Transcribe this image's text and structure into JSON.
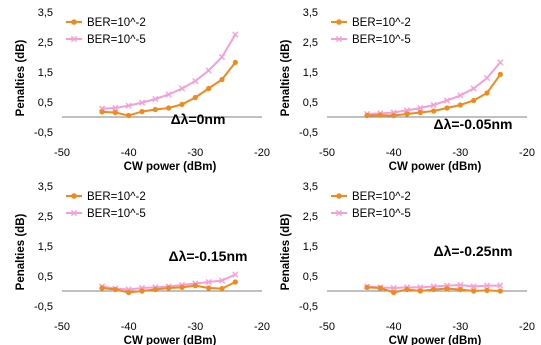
{
  "colors": {
    "series1": "#f08a1c",
    "series2": "#f59fd9",
    "axis": "#808080",
    "grid": "#e6e6e6",
    "text": "#000000"
  },
  "chart_data": [
    {
      "type": "line",
      "annotation": "Δλ=0nm",
      "xlabel": "CW power (dBm)",
      "ylabel": "Penalties (dB)",
      "xlim": [
        -50,
        -20
      ],
      "ylim": [
        -0.5,
        3.5
      ],
      "xticks": [
        "-50",
        "-40",
        "-30",
        "-20"
      ],
      "yticks": [
        "3,5",
        "2,5",
        "1,5",
        "0,5",
        "-0,5"
      ],
      "grid": false,
      "legend": "top-left",
      "series": [
        {
          "name": "BER=10^-2",
          "x": [
            -44,
            -42,
            -40,
            -38,
            -36,
            -34,
            -32,
            -30,
            -28,
            -26,
            -24
          ],
          "y": [
            0.17,
            0.15,
            0.05,
            0.18,
            0.25,
            0.3,
            0.42,
            0.65,
            0.95,
            1.25,
            1.82
          ]
        },
        {
          "name": "BER=10^-5",
          "x": [
            -44,
            -42,
            -40,
            -38,
            -36,
            -34,
            -32,
            -30,
            -28,
            -26,
            -24
          ],
          "y": [
            0.28,
            0.3,
            0.38,
            0.48,
            0.6,
            0.75,
            0.95,
            1.2,
            1.55,
            2.0,
            2.75
          ]
        }
      ]
    },
    {
      "type": "line",
      "annotation": "Δλ=-0.05nm",
      "xlabel": "CW power (dBm)",
      "ylabel": "Penalties (dB)",
      "xlim": [
        -50,
        -20
      ],
      "ylim": [
        -0.5,
        3.5
      ],
      "xticks": [
        "-50",
        "-40",
        "-30",
        "-20"
      ],
      "yticks": [
        "3,5",
        "2,5",
        "1,5",
        "0,5",
        "-0,5"
      ],
      "grid": false,
      "legend": "top-left",
      "series": [
        {
          "name": "BER=10^-2",
          "x": [
            -44,
            -42,
            -40,
            -38,
            -36,
            -34,
            -32,
            -30,
            -28,
            -26,
            -24
          ],
          "y": [
            0.05,
            0.06,
            0.05,
            0.1,
            0.15,
            0.2,
            0.3,
            0.4,
            0.55,
            0.8,
            1.42
          ]
        },
        {
          "name": "BER=10^-5",
          "x": [
            -44,
            -42,
            -40,
            -38,
            -36,
            -34,
            -32,
            -30,
            -28,
            -26,
            -24
          ],
          "y": [
            0.1,
            0.12,
            0.15,
            0.22,
            0.3,
            0.4,
            0.55,
            0.72,
            0.95,
            1.3,
            1.82
          ]
        }
      ]
    },
    {
      "type": "line",
      "annotation": "Δλ=-0.15nm",
      "xlabel": "CW power (dBm)",
      "ylabel": "Penalties (dB)",
      "xlim": [
        -50,
        -20
      ],
      "ylim": [
        -0.5,
        3.5
      ],
      "xticks": [
        "-50",
        "-40",
        "-30",
        "-20"
      ],
      "yticks": [
        "3,5",
        "2,5",
        "1,5",
        "0,5",
        "-0,5"
      ],
      "grid": false,
      "legend": "top-left",
      "series": [
        {
          "name": "BER=10^-2",
          "x": [
            -44,
            -42,
            -40,
            -38,
            -36,
            -34,
            -32,
            -30,
            -28,
            -26,
            -24
          ],
          "y": [
            0.1,
            0.05,
            -0.05,
            0.0,
            0.05,
            0.1,
            0.12,
            0.18,
            0.1,
            0.08,
            0.3
          ]
        },
        {
          "name": "BER=10^-5",
          "x": [
            -44,
            -42,
            -40,
            -38,
            -36,
            -34,
            -32,
            -30,
            -28,
            -26,
            -24
          ],
          "y": [
            0.15,
            0.08,
            0.05,
            0.1,
            0.12,
            0.15,
            0.2,
            0.25,
            0.3,
            0.35,
            0.55
          ]
        }
      ]
    },
    {
      "type": "line",
      "annotation": "Δλ=-0.25nm",
      "xlabel": "CW power (dBm)",
      "ylabel": "Penalties (dB)",
      "xlim": [
        -50,
        -20
      ],
      "ylim": [
        -0.5,
        3.5
      ],
      "xticks": [
        "-50",
        "-40",
        "-30",
        "-20"
      ],
      "yticks": [
        "3,5",
        "2,5",
        "1,5",
        "0,5",
        "-0,5"
      ],
      "grid": false,
      "legend": "top-left",
      "series": [
        {
          "name": "BER=10^-2",
          "x": [
            -44,
            -42,
            -40,
            -38,
            -36,
            -34,
            -32,
            -30,
            -28,
            -26,
            -24
          ],
          "y": [
            0.12,
            0.1,
            -0.05,
            0.05,
            0.0,
            0.05,
            0.08,
            0.05,
            0.0,
            0.02,
            0.0
          ]
        },
        {
          "name": "BER=10^-5",
          "x": [
            -44,
            -42,
            -40,
            -38,
            -36,
            -34,
            -32,
            -30,
            -28,
            -26,
            -24
          ],
          "y": [
            0.15,
            0.12,
            0.1,
            0.12,
            0.12,
            0.15,
            0.18,
            0.2,
            0.15,
            0.18,
            0.18
          ]
        }
      ]
    }
  ]
}
